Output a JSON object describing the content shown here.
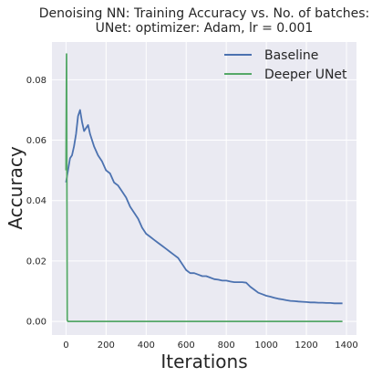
{
  "chart_data": {
    "type": "line",
    "title": "Denoising NN: Training Accuracy vs. No. of batches:",
    "subtitle": "UNet: optimizer: Adam, lr = 0.001",
    "xlabel": "Iterations",
    "ylabel": "Accuracy",
    "xlim": [
      -70,
      1450
    ],
    "ylim": [
      -0.0045,
      0.0925
    ],
    "xticks": [
      0,
      200,
      400,
      600,
      800,
      1000,
      1200,
      1400
    ],
    "yticks": [
      0.0,
      0.02,
      0.04,
      0.06,
      0.08
    ],
    "xtick_labels": [
      "0",
      "200",
      "400",
      "600",
      "800",
      "1000",
      "1200",
      "1400"
    ],
    "ytick_labels": [
      "0.00",
      "0.02",
      "0.04",
      "0.06",
      "0.08"
    ],
    "grid": true,
    "legend_position": "top-right",
    "series": [
      {
        "name": "Baseline",
        "color": "#4c72b0",
        "points": [
          [
            0,
            0.046
          ],
          [
            10,
            0.05
          ],
          [
            20,
            0.054
          ],
          [
            30,
            0.055
          ],
          [
            40,
            0.058
          ],
          [
            50,
            0.062
          ],
          [
            60,
            0.068
          ],
          [
            70,
            0.07
          ],
          [
            80,
            0.066
          ],
          [
            90,
            0.063
          ],
          [
            100,
            0.064
          ],
          [
            110,
            0.065
          ],
          [
            120,
            0.062
          ],
          [
            140,
            0.058
          ],
          [
            160,
            0.055
          ],
          [
            180,
            0.053
          ],
          [
            200,
            0.05
          ],
          [
            220,
            0.049
          ],
          [
            240,
            0.046
          ],
          [
            260,
            0.045
          ],
          [
            280,
            0.043
          ],
          [
            300,
            0.041
          ],
          [
            320,
            0.038
          ],
          [
            340,
            0.036
          ],
          [
            360,
            0.034
          ],
          [
            380,
            0.031
          ],
          [
            400,
            0.029
          ],
          [
            420,
            0.028
          ],
          [
            440,
            0.027
          ],
          [
            460,
            0.026
          ],
          [
            480,
            0.025
          ],
          [
            500,
            0.024
          ],
          [
            520,
            0.023
          ],
          [
            540,
            0.022
          ],
          [
            560,
            0.021
          ],
          [
            580,
            0.019
          ],
          [
            600,
            0.017
          ],
          [
            620,
            0.016
          ],
          [
            640,
            0.016
          ],
          [
            660,
            0.0155
          ],
          [
            680,
            0.015
          ],
          [
            700,
            0.015
          ],
          [
            720,
            0.0145
          ],
          [
            740,
            0.014
          ],
          [
            760,
            0.0138
          ],
          [
            780,
            0.0135
          ],
          [
            800,
            0.0135
          ],
          [
            820,
            0.0132
          ],
          [
            840,
            0.013
          ],
          [
            860,
            0.013
          ],
          [
            880,
            0.013
          ],
          [
            900,
            0.0128
          ],
          [
            920,
            0.0115
          ],
          [
            940,
            0.0105
          ],
          [
            960,
            0.0095
          ],
          [
            980,
            0.009
          ],
          [
            1000,
            0.0085
          ],
          [
            1020,
            0.0082
          ],
          [
            1040,
            0.0078
          ],
          [
            1060,
            0.0075
          ],
          [
            1080,
            0.0073
          ],
          [
            1100,
            0.007
          ],
          [
            1120,
            0.0068
          ],
          [
            1140,
            0.0067
          ],
          [
            1160,
            0.0066
          ],
          [
            1180,
            0.0065
          ],
          [
            1200,
            0.0064
          ],
          [
            1220,
            0.0063
          ],
          [
            1240,
            0.0063
          ],
          [
            1260,
            0.0062
          ],
          [
            1280,
            0.0062
          ],
          [
            1300,
            0.0061
          ],
          [
            1320,
            0.0061
          ],
          [
            1340,
            0.006
          ],
          [
            1360,
            0.006
          ],
          [
            1380,
            0.006
          ]
        ]
      },
      {
        "name": "Deeper UNet",
        "color": "#55a868",
        "points": [
          [
            0,
            0.05
          ],
          [
            3,
            0.0885
          ],
          [
            6,
            0.0004
          ],
          [
            10,
            0.0
          ],
          [
            200,
            0.0
          ],
          [
            400,
            0.0
          ],
          [
            600,
            0.0
          ],
          [
            800,
            0.0
          ],
          [
            1000,
            0.0
          ],
          [
            1200,
            0.0
          ],
          [
            1380,
            0.0
          ]
        ]
      }
    ]
  }
}
